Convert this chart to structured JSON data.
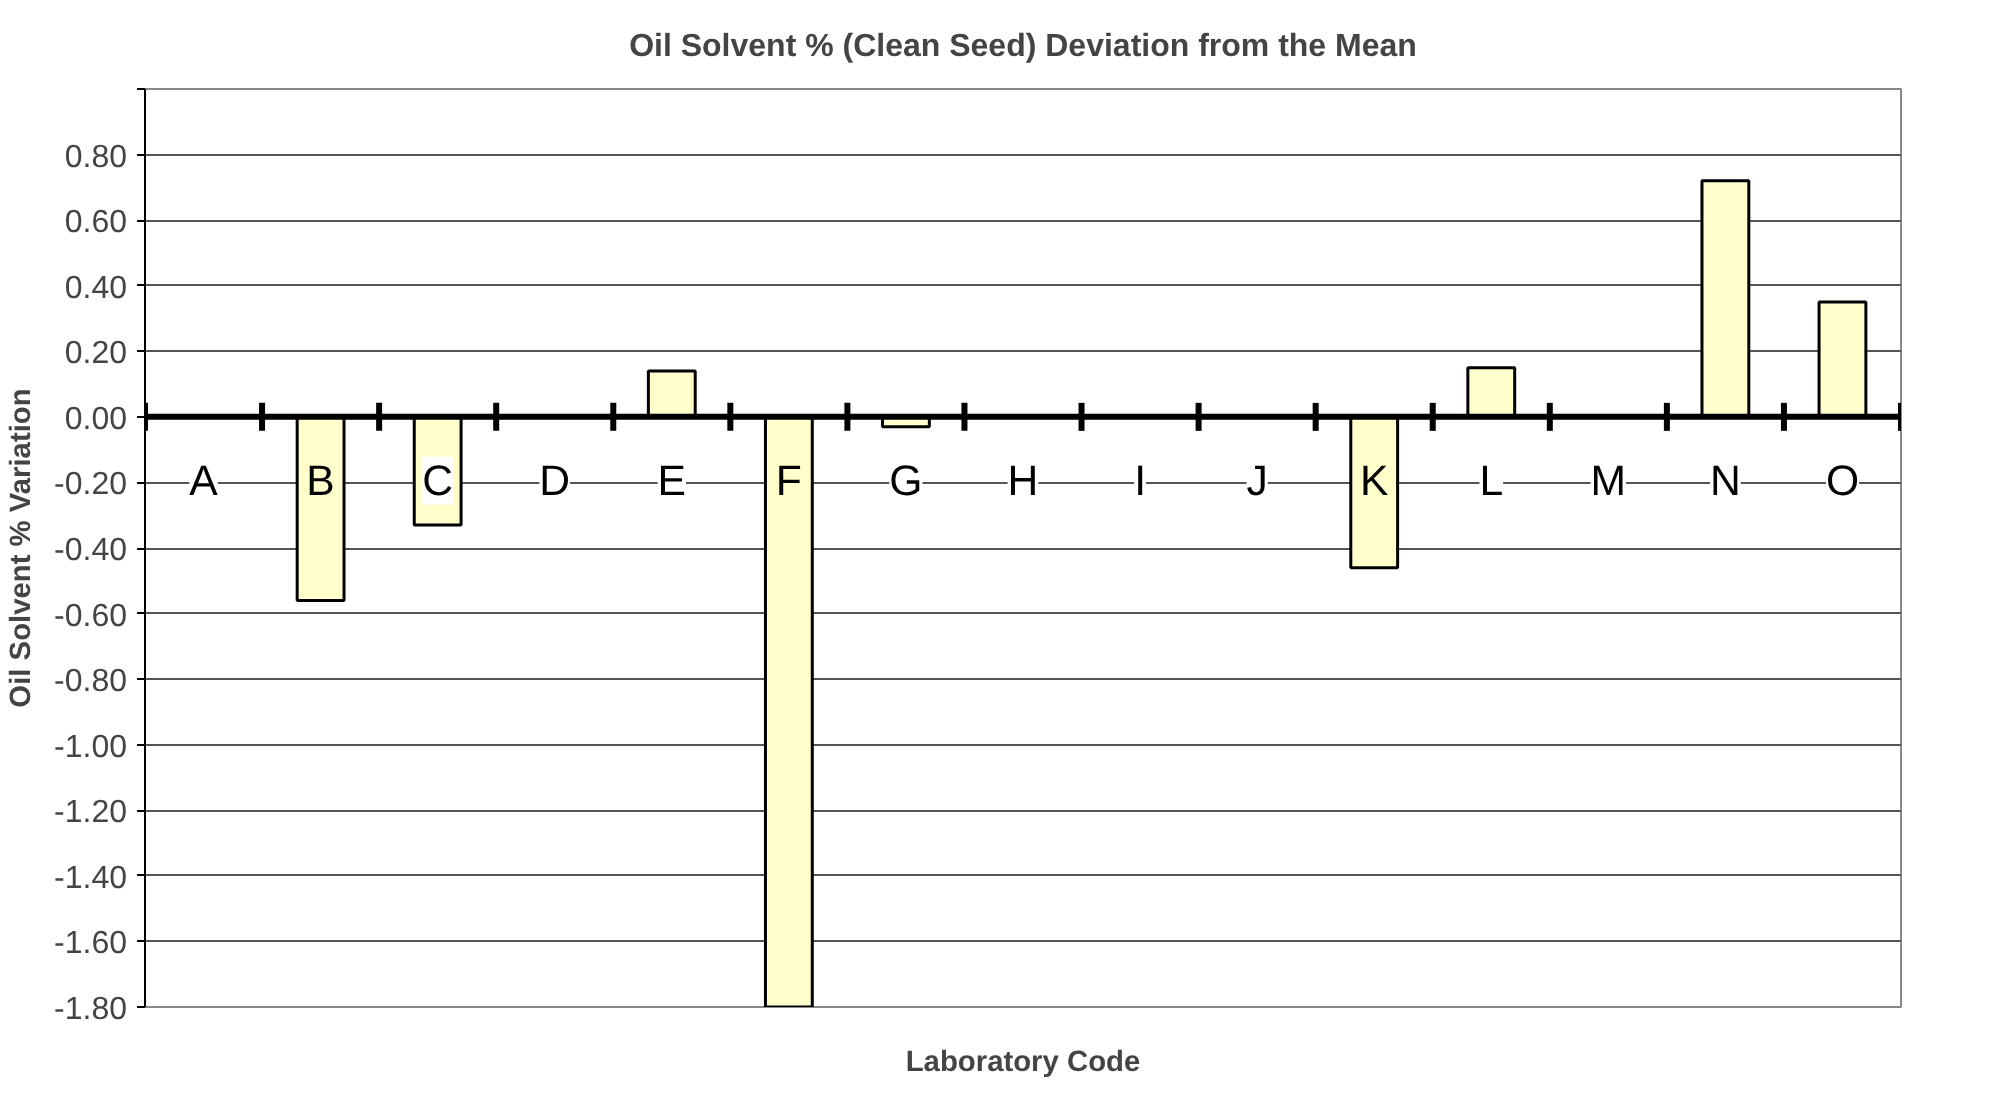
{
  "chart_data": {
    "type": "bar",
    "title": "Oil Solvent % (Clean Seed) Deviation from the Mean",
    "xlabel": "Laboratory Code",
    "ylabel": "Oil Solvent % Variation",
    "categories": [
      "A",
      "B",
      "C",
      "D",
      "E",
      "F",
      "G",
      "H",
      "I",
      "J",
      "K",
      "L",
      "M",
      "N",
      "O"
    ],
    "values": [
      0,
      -0.56,
      -0.33,
      0,
      0.14,
      -1.8,
      -0.03,
      0,
      0,
      0,
      -0.46,
      0.15,
      0,
      0.72,
      0.35
    ],
    "color": "#ffffcc",
    "ylim": [
      -1.8,
      1.0
    ],
    "yticks": [
      {
        "value": -1.8,
        "label": "-1.80"
      },
      {
        "value": -1.6,
        "label": "-1.60"
      },
      {
        "value": -1.4,
        "label": "-1.40"
      },
      {
        "value": -1.2,
        "label": "-1.20"
      },
      {
        "value": -1.0,
        "label": "-1.00"
      },
      {
        "value": -0.8,
        "label": "-0.80"
      },
      {
        "value": -0.6,
        "label": "-0.60"
      },
      {
        "value": -0.4,
        "label": "-0.40"
      },
      {
        "value": -0.2,
        "label": "-0.20"
      },
      {
        "value": 0,
        "label": "0.00"
      },
      {
        "value": 0.2,
        "label": "0.20"
      },
      {
        "value": 0.4,
        "label": "0.40"
      },
      {
        "value": 0.6,
        "label": "0.60"
      },
      {
        "value": 0.8,
        "label": "0.80"
      },
      {
        "value": 1.0,
        "label": null
      }
    ],
    "grid": "y"
  }
}
